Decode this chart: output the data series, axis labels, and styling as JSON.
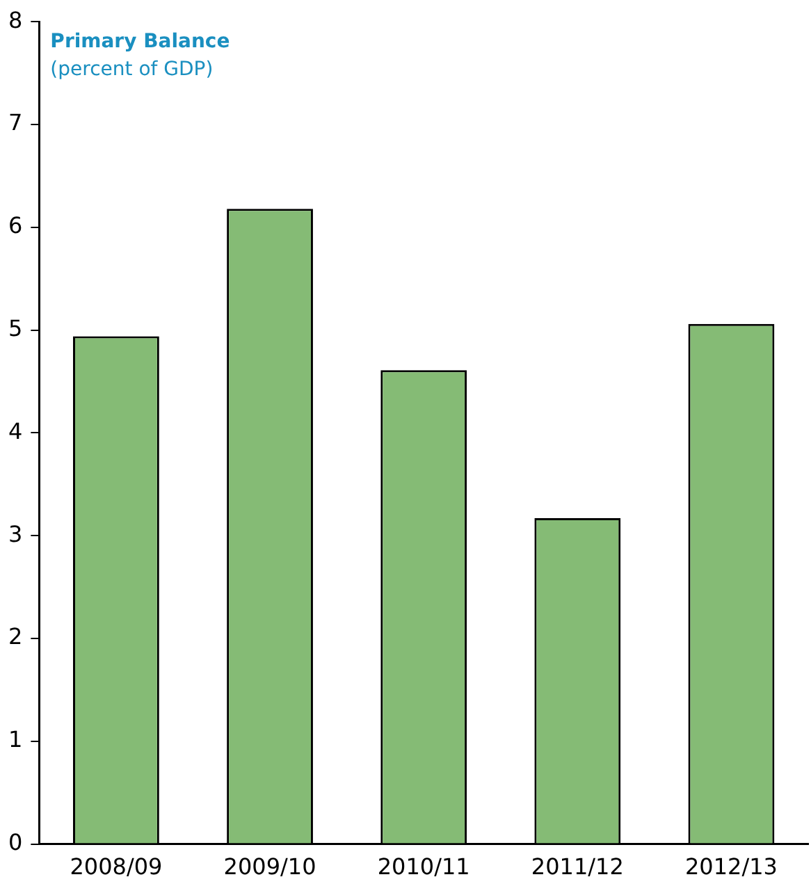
{
  "chart_data": {
    "type": "bar",
    "title": "Primary Balance",
    "subtitle": "(percent of GDP)",
    "categories": [
      "2008/09",
      "2009/10",
      "2010/11",
      "2011/12",
      "2012/13"
    ],
    "values": [
      4.94,
      6.18,
      4.61,
      3.17,
      5.06
    ],
    "color": "#85bb75",
    "ylim": [
      0,
      8
    ],
    "yticks": [
      0,
      1,
      2,
      3,
      4,
      5,
      6,
      7,
      8
    ],
    "grid": false,
    "legend": false
  }
}
